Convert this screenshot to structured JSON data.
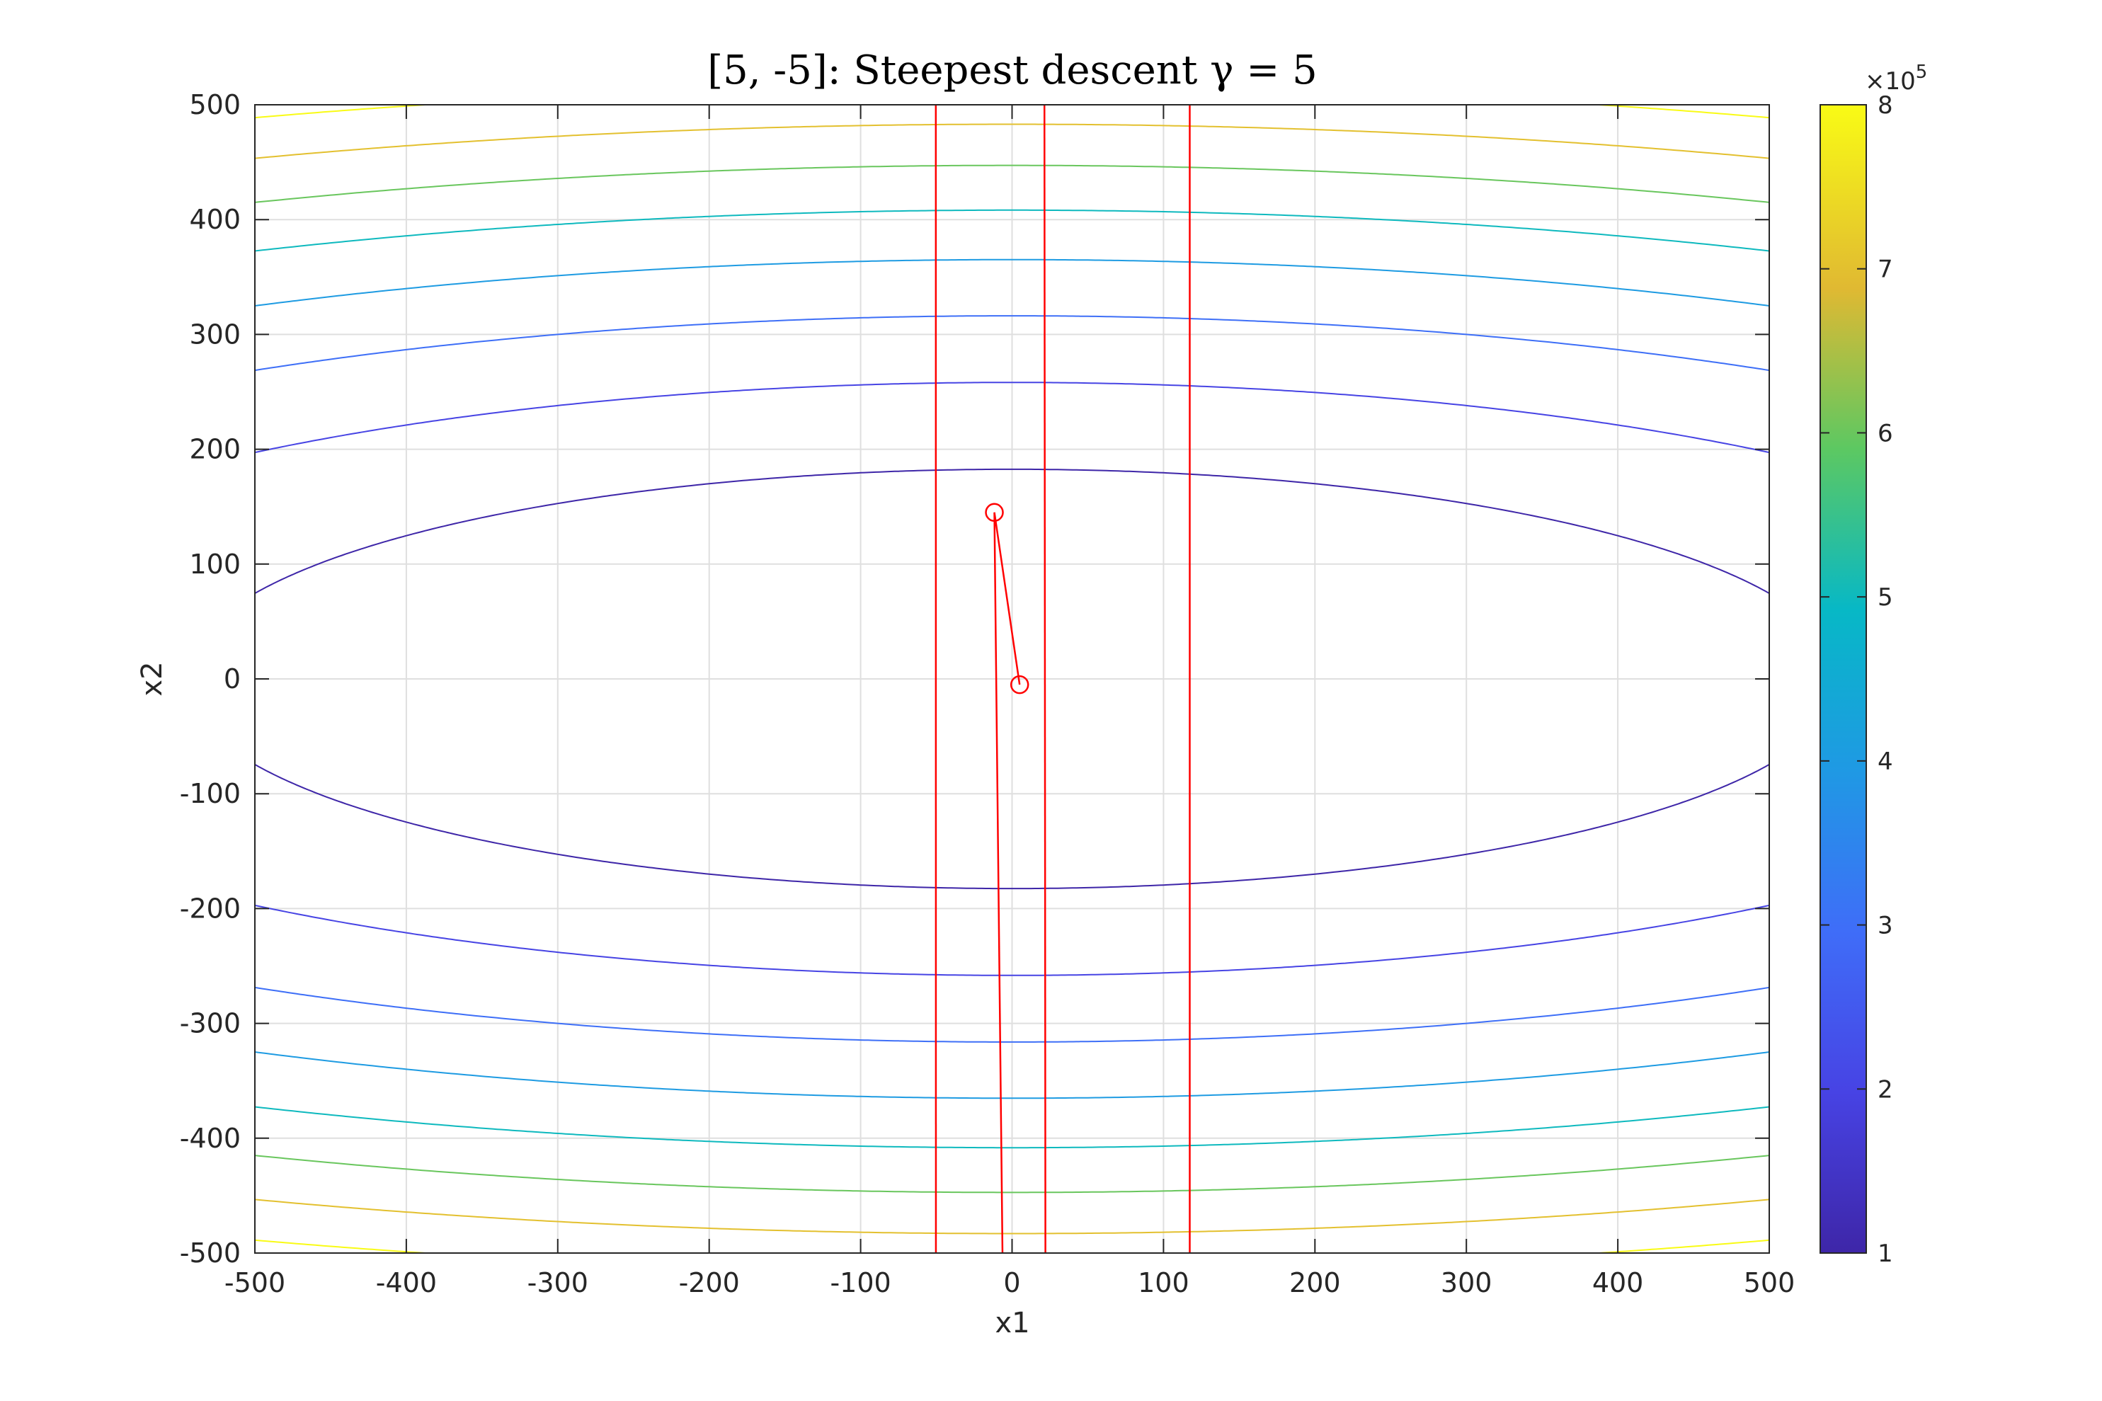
{
  "chart_data": {
    "type": "contour",
    "title": "[5, -5]: Steepest descent γ = 5",
    "xlabel": "x1",
    "ylabel": "x2",
    "xlim": [
      -500,
      500
    ],
    "ylim": [
      -500,
      500
    ],
    "grid": true,
    "x_ticks": [
      "-500",
      "-400",
      "-300",
      "-200",
      "-100",
      "0",
      "100",
      "200",
      "300",
      "400",
      "500"
    ],
    "y_ticks": [
      "-500",
      "-400",
      "-300",
      "-200",
      "-100",
      "0",
      "100",
      "200",
      "300",
      "400",
      "500"
    ],
    "contour_function": "x1^2/3 + 3*x2^2",
    "contour_levels": [
      100000,
      200000,
      300000,
      400000,
      500000,
      600000,
      700000,
      800000
    ],
    "colormap": "parula",
    "colorbar": {
      "location": "right",
      "range": [
        100000,
        800000
      ],
      "ticks": [
        "1",
        "2",
        "3",
        "4",
        "5",
        "6",
        "7",
        "8"
      ],
      "exponent_label": "×10",
      "exponent": "5"
    },
    "path": {
      "color": "#ff0000",
      "marker": "circle",
      "x1": [
        5,
        -11.67,
        24.4,
        -56.6,
        132,
        -308
      ],
      "x2": [
        -5,
        145,
        -4205,
        121945,
        -3536405,
        102555745
      ]
    }
  }
}
